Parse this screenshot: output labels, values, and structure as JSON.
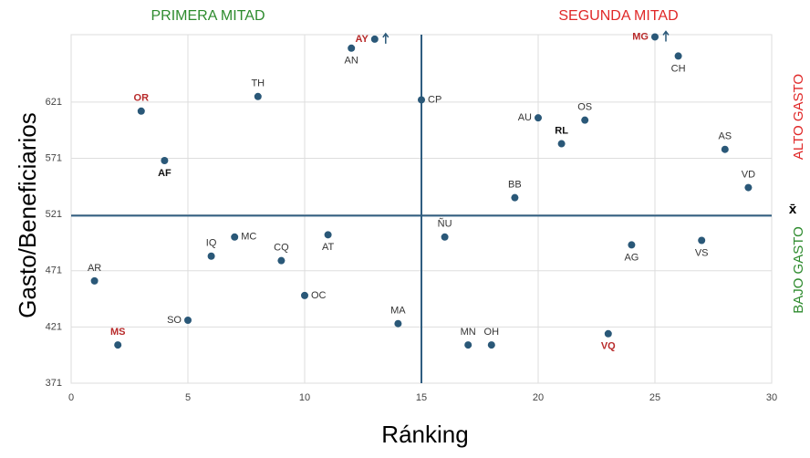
{
  "chart_data": {
    "type": "scatter",
    "x_label": "Ránking",
    "y_label": "Gasto/Beneficiarios",
    "annotations": {
      "left_top": "PRIMERA MITAD",
      "right_top": "SEGUNDA MITAD",
      "upper_right": "ALTO GASTO",
      "lower_right": "BAJO GASTO",
      "mean_symbol": "x̄"
    },
    "annotation_colors": {
      "left_top": "#2e8b2e",
      "right_top": "#e02828",
      "upper_right": "#e02828",
      "lower_right": "#2e8b2e"
    },
    "xlim": [
      0,
      30
    ],
    "xticks": [
      0,
      5,
      10,
      15,
      20,
      25,
      30
    ],
    "ylim": [
      371,
      681
    ],
    "yticks": [
      371,
      421,
      471,
      521,
      571,
      621
    ],
    "x_mean": 15,
    "y_mean": 520,
    "grid": true,
    "series": [
      {
        "color": "#2a5878",
        "labels": [
          "AN",
          "AY",
          "TH",
          "OR",
          "CP",
          "AF",
          "AU",
          "OS",
          "RL",
          "MG",
          "CH",
          "AS",
          "VD",
          "BB",
          "ÑU",
          "IQ",
          "MC",
          "CQ",
          "AT",
          "AR",
          "SO",
          "OC",
          "MA",
          "MN",
          "OH",
          "MS",
          "VQ",
          "AG",
          "VS"
        ],
        "x": [
          12,
          13,
          8,
          3,
          15,
          4,
          20,
          22,
          21,
          25,
          26,
          28,
          29,
          19,
          16,
          6,
          7,
          9,
          11,
          1,
          5,
          10,
          14,
          17,
          18,
          2,
          23,
          24,
          27
        ],
        "values": [
          669,
          677,
          626,
          613,
          623,
          569,
          607,
          605,
          584,
          679,
          662,
          579,
          545,
          536,
          501,
          484,
          501,
          480,
          503,
          462,
          427,
          449,
          424,
          405,
          405,
          405,
          415,
          494,
          498
        ],
        "label_colors": [
          "#333",
          "#b82a2a",
          "#333",
          "#b82a2a",
          "#333",
          "#111",
          "#333",
          "#333",
          "#111",
          "#b82a2a",
          "#333",
          "#333",
          "#333",
          "#333",
          "#333",
          "#333",
          "#333",
          "#333",
          "#333",
          "#333",
          "#333",
          "#333",
          "#333",
          "#333",
          "#333",
          "#b82a2a",
          "#b82a2a",
          "#333",
          "#333"
        ],
        "label_bold": [
          false,
          true,
          false,
          true,
          false,
          true,
          false,
          false,
          true,
          true,
          false,
          false,
          false,
          false,
          false,
          false,
          false,
          false,
          false,
          false,
          false,
          false,
          false,
          false,
          false,
          true,
          true,
          false,
          false
        ]
      }
    ]
  }
}
